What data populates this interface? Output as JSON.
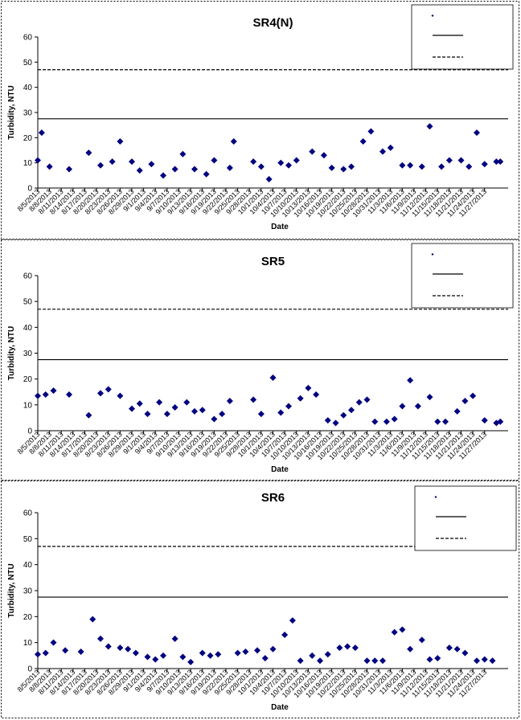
{
  "colors": {
    "marker": "#000080",
    "line": "#000000",
    "background": "#ffffff"
  },
  "chart_data": [
    {
      "type": "scatter",
      "title": "SR4(N)",
      "xlabel": "Date",
      "ylabel": "Turbidity, NTU",
      "ylim": [
        0,
        60
      ],
      "yticks": [
        0,
        10,
        20,
        30,
        40,
        50,
        60
      ],
      "xtick_labels": [
        "8/5/2013",
        "8/8/2013",
        "8/11/2013",
        "8/14/2013",
        "8/17/2013",
        "8/20/2013",
        "8/23/2013",
        "8/26/2013",
        "8/29/2013",
        "9/1/2013",
        "9/4/2013",
        "9/7/2013",
        "9/10/2013",
        "9/13/2013",
        "9/16/2013",
        "9/19/2013",
        "9/22/2013",
        "9/25/2013",
        "9/28/2013",
        "10/1/2013",
        "10/4/2013",
        "10/7/2013",
        "10/10/2013",
        "10/13/2013",
        "10/16/2013",
        "10/19/2013",
        "10/22/2013",
        "10/25/2013",
        "10/28/2013",
        "10/31/2013",
        "11/3/2013",
        "11/6/2013",
        "11/9/2013",
        "11/12/2013",
        "11/15/2013",
        "11/18/2013",
        "11/21/2013",
        "11/24/2013",
        "11/27/2013"
      ],
      "x": [
        "8/5/2013",
        "8/6/2013",
        "8/8/2013",
        "8/13/2013",
        "8/18/2013",
        "8/21/2013",
        "8/24/2013",
        "8/26/2013",
        "8/29/2013",
        "8/31/2013",
        "9/3/2013",
        "9/6/2013",
        "9/9/2013",
        "9/11/2013",
        "9/14/2013",
        "9/17/2013",
        "9/19/2013",
        "9/23/2013",
        "9/24/2013",
        "9/29/2013",
        "10/1/2013",
        "10/3/2013",
        "10/6/2013",
        "10/8/2013",
        "10/10/2013",
        "10/14/2013",
        "10/17/2013",
        "10/19/2013",
        "10/22/2013",
        "10/24/2013",
        "10/27/2013",
        "10/29/2013",
        "11/1/2013",
        "11/3/2013",
        "11/6/2013",
        "11/8/2013",
        "11/11/2013",
        "11/13/2013",
        "11/16/2013",
        "11/18/2013",
        "11/21/2013",
        "11/23/2013",
        "11/25/2013",
        "11/27/2013",
        "11/30/2013",
        "12/1/2013"
      ],
      "series": [
        {
          "name": "",
          "values": [
            11,
            22,
            8.5,
            7.5,
            14,
            9,
            10.5,
            18.5,
            10.5,
            7,
            9.5,
            5,
            7.5,
            13.5,
            7.5,
            5.5,
            11,
            8,
            18.5,
            10.5,
            8.5,
            3.5,
            10,
            9,
            11,
            14.5,
            13,
            8,
            7.5,
            8.5,
            18.5,
            22.5,
            14.5,
            16,
            9,
            9,
            8.5,
            24.5,
            8.5,
            11,
            11,
            8.5,
            22,
            9.5,
            10.5,
            10.5
          ]
        }
      ],
      "reference_lines": [
        {
          "name": "",
          "y": 27.5,
          "style": "solid"
        },
        {
          "name": "",
          "y": 47,
          "style": "dashed"
        }
      ],
      "legend": [
        "",
        "",
        ""
      ],
      "legend_position": "top-right",
      "grid": false
    },
    {
      "type": "scatter",
      "title": "SR5",
      "xlabel": "Date",
      "ylabel": "Turbidity, NTU",
      "ylim": [
        0,
        60
      ],
      "yticks": [
        0,
        10,
        20,
        30,
        40,
        50,
        60
      ],
      "xtick_labels": [
        "8/5/2013",
        "8/8/2013",
        "8/11/2013",
        "8/14/2013",
        "8/17/2013",
        "8/20/2013",
        "8/23/2013",
        "8/26/2013",
        "8/29/2013",
        "9/1/2013",
        "9/4/2013",
        "9/7/2013",
        "9/10/2013",
        "9/13/2013",
        "9/16/2013",
        "9/19/2013",
        "9/22/2013",
        "9/25/2013",
        "9/28/2013",
        "10/1/2013",
        "10/4/2013",
        "10/7/2013",
        "10/10/2013",
        "10/13/2013",
        "10/16/2013",
        "10/19/2013",
        "10/22/2013",
        "10/25/2013",
        "10/28/2013",
        "10/31/2013",
        "11/3/2013",
        "11/6/2013",
        "11/9/2013",
        "11/12/2013",
        "11/15/2013",
        "11/18/2013",
        "11/21/2013",
        "11/24/2013",
        "11/27/2013"
      ],
      "x": [
        "8/5/2013",
        "8/7/2013",
        "8/9/2013",
        "8/13/2013",
        "8/18/2013",
        "8/21/2013",
        "8/23/2013",
        "8/26/2013",
        "8/29/2013",
        "8/31/2013",
        "9/2/2013",
        "9/5/2013",
        "9/7/2013",
        "9/9/2013",
        "9/12/2013",
        "9/14/2013",
        "9/16/2013",
        "9/19/2013",
        "9/21/2013",
        "9/23/2013",
        "9/29/2013",
        "10/1/2013",
        "10/4/2013",
        "10/6/2013",
        "10/8/2013",
        "10/11/2013",
        "10/13/2013",
        "10/15/2013",
        "10/18/2013",
        "10/20/2013",
        "10/22/2013",
        "10/24/2013",
        "10/26/2013",
        "10/28/2013",
        "10/30/2013",
        "11/2/2013",
        "11/4/2013",
        "11/6/2013",
        "11/8/2013",
        "11/10/2013",
        "11/13/2013",
        "11/15/2013",
        "11/17/2013",
        "11/20/2013",
        "11/22/2013",
        "11/24/2013",
        "11/27/2013",
        "11/30/2013",
        "12/1/2013"
      ],
      "series": [
        {
          "name": "",
          "values": [
            13.5,
            14,
            15.5,
            14,
            6,
            14.5,
            16,
            13.5,
            8.5,
            10.5,
            6.5,
            11,
            6.5,
            9,
            11,
            7.5,
            8,
            4.5,
            6.5,
            11.5,
            12,
            6.5,
            20.5,
            7,
            9.5,
            12.5,
            16.5,
            14,
            4,
            3,
            6,
            8,
            11,
            12,
            3.5,
            3.5,
            4.5,
            9.5,
            19.5,
            9.5,
            13,
            3.5,
            3.5,
            7.5,
            11.5,
            13.5,
            4,
            3,
            3.5
          ]
        }
      ],
      "reference_lines": [
        {
          "name": "",
          "y": 27.5,
          "style": "solid"
        },
        {
          "name": "",
          "y": 47,
          "style": "dashed"
        }
      ],
      "legend": [
        "",
        "",
        ""
      ],
      "legend_position": "top-right",
      "grid": false
    },
    {
      "type": "scatter",
      "title": "SR6",
      "xlabel": "Date",
      "ylabel": "Turbidity, NTU",
      "ylim": [
        0,
        60
      ],
      "yticks": [
        0,
        10,
        20,
        30,
        40,
        50,
        60
      ],
      "xtick_labels": [
        "8/5/2013",
        "8/8/2013",
        "8/11/2013",
        "8/14/2013",
        "8/17/2013",
        "8/20/2013",
        "8/23/2013",
        "8/26/2013",
        "8/29/2013",
        "9/1/2013",
        "9/4/2013",
        "9/7/2013",
        "9/10/2013",
        "9/13/2013",
        "9/16/2013",
        "9/19/2013",
        "9/22/2013",
        "9/25/2013",
        "9/28/2013",
        "10/1/2013",
        "10/4/2013",
        "10/7/2013",
        "10/10/2013",
        "10/13/2013",
        "10/16/2013",
        "10/19/2013",
        "10/22/2013",
        "10/25/2013",
        "10/28/2013",
        "10/31/2013",
        "11/3/2013",
        "11/6/2013",
        "11/9/2013",
        "11/12/2013",
        "11/15/2013",
        "11/18/2013",
        "11/21/2013",
        "11/24/2013",
        "11/27/2013"
      ],
      "x": [
        "8/5/2013",
        "8/7/2013",
        "8/9/2013",
        "8/12/2013",
        "8/16/2013",
        "8/19/2013",
        "8/21/2013",
        "8/23/2013",
        "8/26/2013",
        "8/28/2013",
        "8/30/2013",
        "9/2/2013",
        "9/4/2013",
        "9/6/2013",
        "9/9/2013",
        "9/11/2013",
        "9/13/2013",
        "9/16/2013",
        "9/18/2013",
        "9/20/2013",
        "9/25/2013",
        "9/27/2013",
        "9/30/2013",
        "10/2/2013",
        "10/4/2013",
        "10/7/2013",
        "10/9/2013",
        "10/11/2013",
        "10/14/2013",
        "10/16/2013",
        "10/18/2013",
        "10/21/2013",
        "10/23/2013",
        "10/25/2013",
        "10/28/2013",
        "10/30/2013",
        "11/1/2013",
        "11/4/2013",
        "11/6/2013",
        "11/8/2013",
        "11/11/2013",
        "11/13/2013",
        "11/15/2013",
        "11/18/2013",
        "11/20/2013",
        "11/22/2013",
        "11/25/2013",
        "11/27/2013",
        "11/29/2013"
      ],
      "series": [
        {
          "name": "",
          "values": [
            5.5,
            6,
            10,
            7,
            6.5,
            19,
            11.5,
            8.5,
            8,
            7.5,
            6,
            4.5,
            3.5,
            5,
            11.5,
            4.5,
            2.5,
            6,
            5,
            5.5,
            6,
            6.5,
            7,
            4,
            7.5,
            13,
            18.5,
            3,
            5,
            3,
            5.5,
            8,
            8.5,
            8,
            3,
            3,
            3,
            14,
            15,
            7.5,
            11,
            3.5,
            4,
            8,
            7.5,
            6,
            3,
            3.5,
            3
          ]
        }
      ],
      "reference_lines": [
        {
          "name": "",
          "y": 27.5,
          "style": "solid"
        },
        {
          "name": "",
          "y": 47,
          "style": "dashed"
        }
      ],
      "legend": [
        "",
        "",
        ""
      ],
      "legend_position": "top-right",
      "grid": false
    }
  ]
}
